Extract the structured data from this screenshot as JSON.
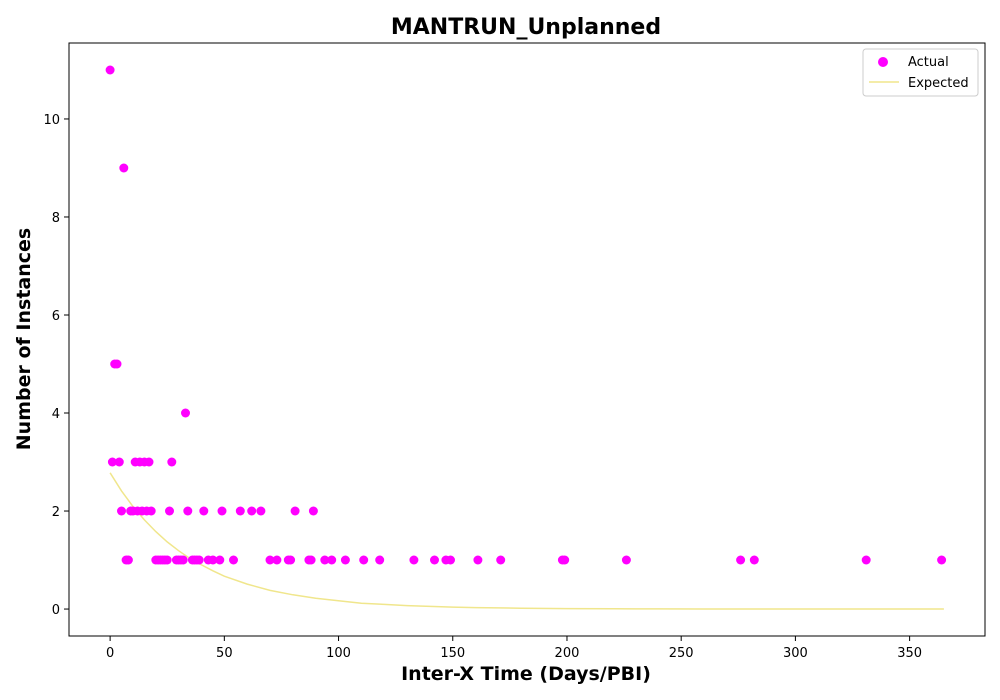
{
  "chart_data": {
    "type": "scatter",
    "title": "MANTRUN_Unplanned",
    "xlabel": "Inter-X Time (Days/PBI)",
    "ylabel": "Number of Instances",
    "xlim": [
      -18,
      383
    ],
    "ylim": [
      -0.55,
      11.55
    ],
    "xticks": [
      0,
      50,
      100,
      150,
      200,
      250,
      300,
      350
    ],
    "yticks": [
      0,
      2,
      4,
      6,
      8,
      10
    ],
    "grid": false,
    "legend_position": "top-right",
    "series": [
      {
        "name": "Actual",
        "kind": "scatter",
        "color": "#ff00ff",
        "points": [
          [
            0,
            11
          ],
          [
            1,
            3
          ],
          [
            2,
            5
          ],
          [
            3,
            5
          ],
          [
            4,
            3
          ],
          [
            5,
            2
          ],
          [
            6,
            9
          ],
          [
            7,
            1
          ],
          [
            8,
            1
          ],
          [
            9,
            2
          ],
          [
            10,
            2
          ],
          [
            11,
            3
          ],
          [
            12,
            2
          ],
          [
            13,
            3
          ],
          [
            14,
            2
          ],
          [
            15,
            3
          ],
          [
            16,
            2
          ],
          [
            17,
            3
          ],
          [
            18,
            2
          ],
          [
            20,
            1
          ],
          [
            21,
            1
          ],
          [
            22,
            1
          ],
          [
            23,
            1
          ],
          [
            24,
            1
          ],
          [
            25,
            1
          ],
          [
            26,
            2
          ],
          [
            27,
            3
          ],
          [
            29,
            1
          ],
          [
            30,
            1
          ],
          [
            31,
            1
          ],
          [
            32,
            1
          ],
          [
            33,
            4
          ],
          [
            34,
            2
          ],
          [
            36,
            1
          ],
          [
            37,
            1
          ],
          [
            38,
            1
          ],
          [
            39,
            1
          ],
          [
            41,
            2
          ],
          [
            43,
            1
          ],
          [
            45,
            1
          ],
          [
            48,
            1
          ],
          [
            49,
            2
          ],
          [
            54,
            1
          ],
          [
            57,
            2
          ],
          [
            62,
            2
          ],
          [
            66,
            2
          ],
          [
            70,
            1
          ],
          [
            73,
            1
          ],
          [
            78,
            1
          ],
          [
            79,
            1
          ],
          [
            81,
            2
          ],
          [
            87,
            1
          ],
          [
            88,
            1
          ],
          [
            89,
            2
          ],
          [
            94,
            1
          ],
          [
            97,
            1
          ],
          [
            103,
            1
          ],
          [
            111,
            1
          ],
          [
            118,
            1
          ],
          [
            133,
            1
          ],
          [
            142,
            1
          ],
          [
            147,
            1
          ],
          [
            149,
            1
          ],
          [
            161,
            1
          ],
          [
            171,
            1
          ],
          [
            198,
            1
          ],
          [
            199,
            1
          ],
          [
            226,
            1
          ],
          [
            276,
            1
          ],
          [
            282,
            1
          ],
          [
            331,
            1
          ],
          [
            364,
            1
          ]
        ]
      },
      {
        "name": "Expected",
        "kind": "line",
        "color": "#f0e68c",
        "x": [
          0,
          5,
          10,
          15,
          20,
          25,
          30,
          35,
          40,
          45,
          50,
          60,
          70,
          80,
          90,
          100,
          110,
          120,
          130,
          140,
          150,
          160,
          170,
          180,
          200,
          220,
          240,
          260,
          280,
          300,
          320,
          340,
          365
        ],
        "y": [
          2.78,
          2.41,
          2.09,
          1.82,
          1.58,
          1.37,
          1.19,
          1.03,
          0.9,
          0.78,
          0.67,
          0.51,
          0.38,
          0.29,
          0.22,
          0.17,
          0.12,
          0.094,
          0.071,
          0.053,
          0.04,
          0.03,
          0.023,
          0.017,
          0.01,
          0.0055,
          0.0031,
          0.0017,
          0.001,
          0.0005,
          0.0003,
          0.0002,
          0.0001
        ]
      }
    ]
  }
}
